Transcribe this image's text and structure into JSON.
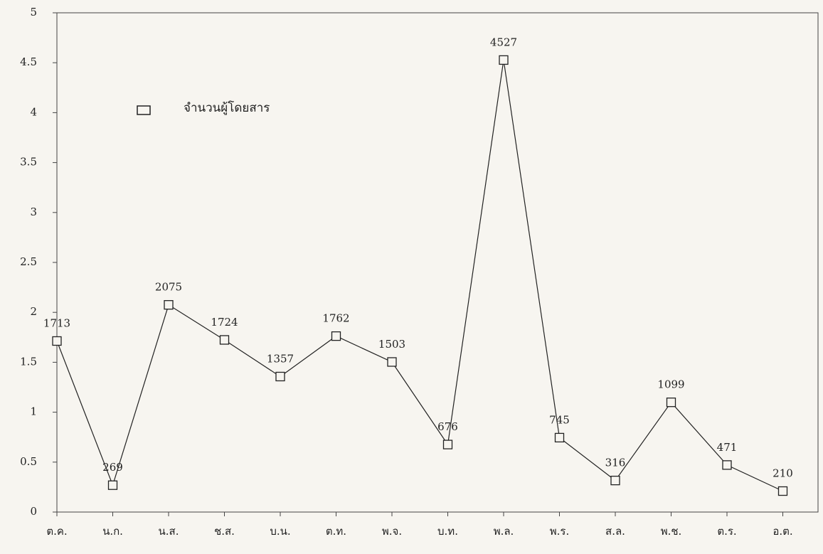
{
  "chart_data": {
    "type": "line",
    "categories": [
      "ต.ค.",
      "น.ก.",
      "น.ส.",
      "ช.ส.",
      "บ.น.",
      "ต.ท.",
      "พ.จ.",
      "บ.ท.",
      "พ.ล.",
      "พ.ร.",
      "ส.ล.",
      "พ.ช.",
      "ต.ร.",
      "อ.ต."
    ],
    "series": [
      {
        "name": "จำนวนผู้โดยสาร",
        "color": "#222222",
        "values": [
          1.713,
          0.269,
          2.075,
          1.724,
          1.357,
          1.762,
          1.503,
          0.676,
          4.527,
          0.745,
          0.316,
          1.099,
          0.471,
          0.21
        ],
        "value_labels": [
          "1713",
          "269",
          "2075",
          "1724",
          "1357",
          "1762",
          "1503",
          "676",
          "4527",
          "745",
          "316",
          "1099",
          "471",
          "210"
        ]
      }
    ],
    "ylim": [
      0,
      5
    ],
    "yticks": [
      0,
      0.5,
      1,
      1.5,
      2,
      2.5,
      3,
      3.5,
      4,
      4.5,
      5
    ],
    "grid": false,
    "legend": "upper left"
  }
}
